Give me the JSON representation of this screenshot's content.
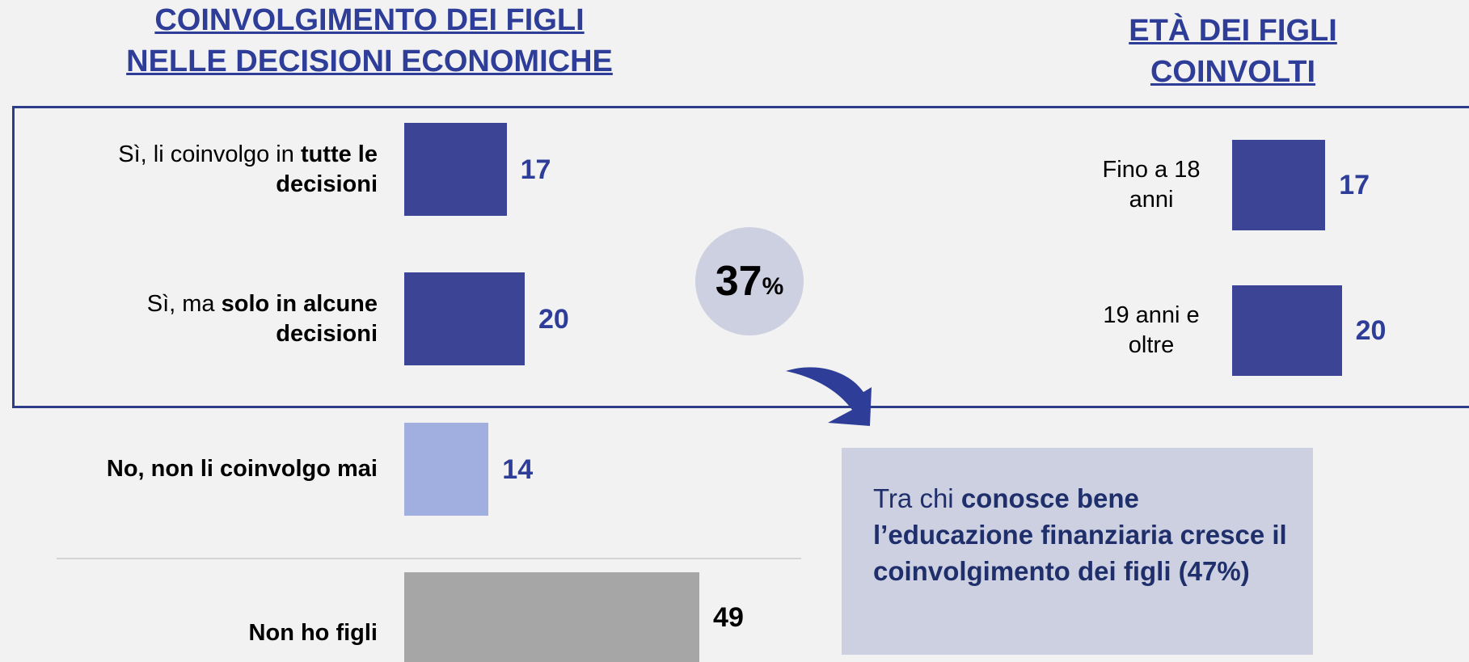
{
  "chart_data": [
    {
      "type": "bar",
      "orientation": "horizontal",
      "title": [
        "COINVOLGIMENTO DEI FIGLI",
        "NELLE DECISIONI ECONOMICHE"
      ],
      "categories": [
        {
          "plain": "Sì, li coinvolgo in",
          "bold": "tutte le decisioni"
        },
        {
          "plain": "Sì, ma",
          "bold": "solo in alcune decisioni"
        },
        {
          "bold": "No, non li coinvolgo mai"
        },
        {
          "bold": "Non ho figli"
        }
      ],
      "values": [
        17,
        20,
        14,
        49
      ],
      "colors": [
        "#3c4496",
        "#3c4496",
        "#a1aee0",
        "#a6a6a6"
      ],
      "label_colors": [
        "#2e3d98",
        "#2e3d98",
        "#2e3d98",
        "#000000"
      ],
      "highlight": {
        "value": 37,
        "suffix": "%"
      }
    },
    {
      "type": "bar",
      "orientation": "horizontal",
      "title": [
        "ETÀ DEI FIGLI",
        "COINVOLTI"
      ],
      "categories": [
        {
          "plain": "Fino a 18 anni"
        },
        {
          "plain": "19 anni e oltre"
        }
      ],
      "values": [
        17,
        20
      ],
      "colors": [
        "#3c4496",
        "#3c4496"
      ],
      "label_colors": [
        "#2e3d98",
        "#2e3d98"
      ]
    }
  ],
  "callout": {
    "plain": "Tra chi",
    "bold": "conosce bene l’educazione finanziaria cresce il coinvolgimento dei figli (47%)"
  }
}
